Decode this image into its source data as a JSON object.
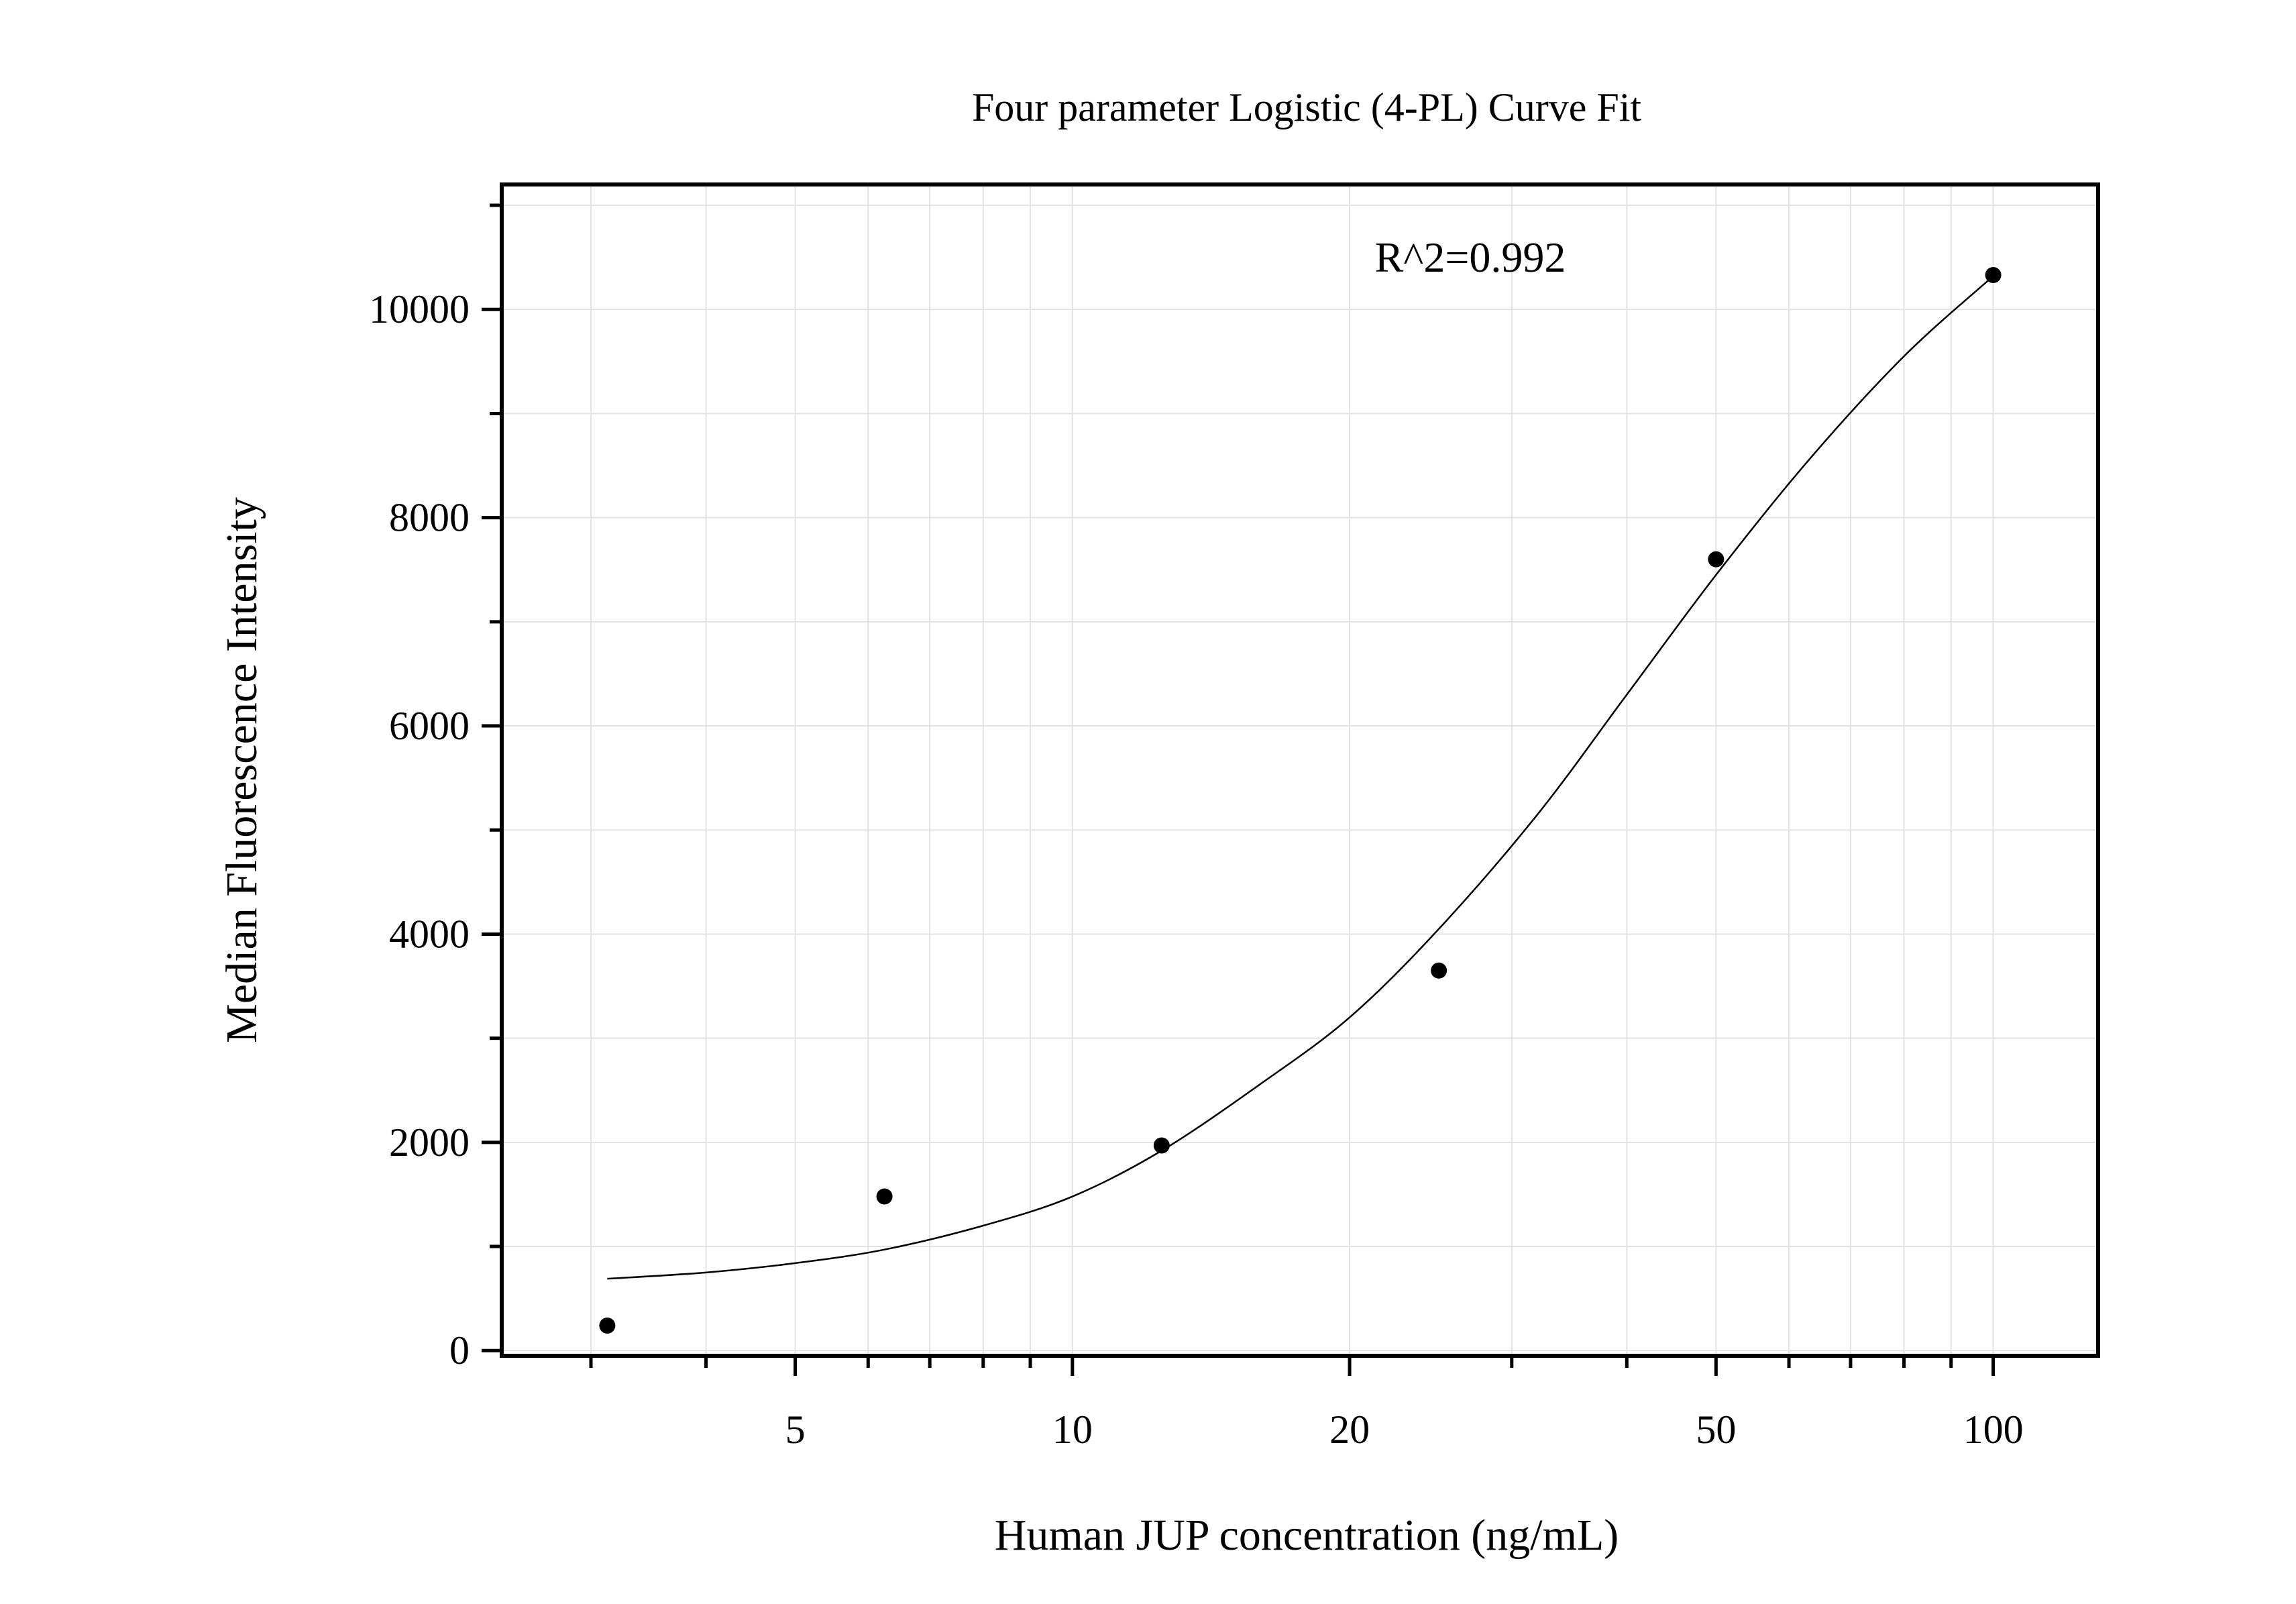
{
  "chart_data": {
    "type": "scatter",
    "title": "Four parameter Logistic (4-PL) Curve Fit",
    "xlabel": "Human JUP concentration (ng/mL)",
    "ylabel": "Median Fluorescence Intensity",
    "x_scale": "log",
    "xlim": [
      2.4,
      130
    ],
    "ylim": [
      -50,
      11200
    ],
    "x_ticks": [
      {
        "value": 5,
        "label": "5"
      },
      {
        "value": 10,
        "label": "10"
      },
      {
        "value": 20,
        "label": "20"
      },
      {
        "value": 50,
        "label": "50"
      },
      {
        "value": 100,
        "label": "100"
      }
    ],
    "y_ticks": [
      {
        "value": 0,
        "label": "0"
      },
      {
        "value": 2000,
        "label": "2000"
      },
      {
        "value": 4000,
        "label": "4000"
      },
      {
        "value": 6000,
        "label": "6000"
      },
      {
        "value": 8000,
        "label": "8000"
      },
      {
        "value": 10000,
        "label": "10000"
      }
    ],
    "grid": true,
    "points": [
      {
        "x": 3.125,
        "y": 240
      },
      {
        "x": 6.25,
        "y": 1480
      },
      {
        "x": 12.5,
        "y": 1970
      },
      {
        "x": 25,
        "y": 3650
      },
      {
        "x": 50,
        "y": 7600
      },
      {
        "x": 100,
        "y": 10330
      }
    ],
    "fit_curve": [
      {
        "x": 3.125,
        "y": 690
      },
      {
        "x": 4,
        "y": 750
      },
      {
        "x": 5,
        "y": 840
      },
      {
        "x": 6.25,
        "y": 970
      },
      {
        "x": 8,
        "y": 1200
      },
      {
        "x": 10,
        "y": 1480
      },
      {
        "x": 12.5,
        "y": 1920
      },
      {
        "x": 16,
        "y": 2560
      },
      {
        "x": 20,
        "y": 3200
      },
      {
        "x": 25,
        "y": 4050
      },
      {
        "x": 32,
        "y": 5150
      },
      {
        "x": 40,
        "y": 6300
      },
      {
        "x": 50,
        "y": 7450
      },
      {
        "x": 63,
        "y": 8550
      },
      {
        "x": 80,
        "y": 9550
      },
      {
        "x": 100,
        "y": 10320
      }
    ],
    "annotation": "R^2=0.992"
  }
}
